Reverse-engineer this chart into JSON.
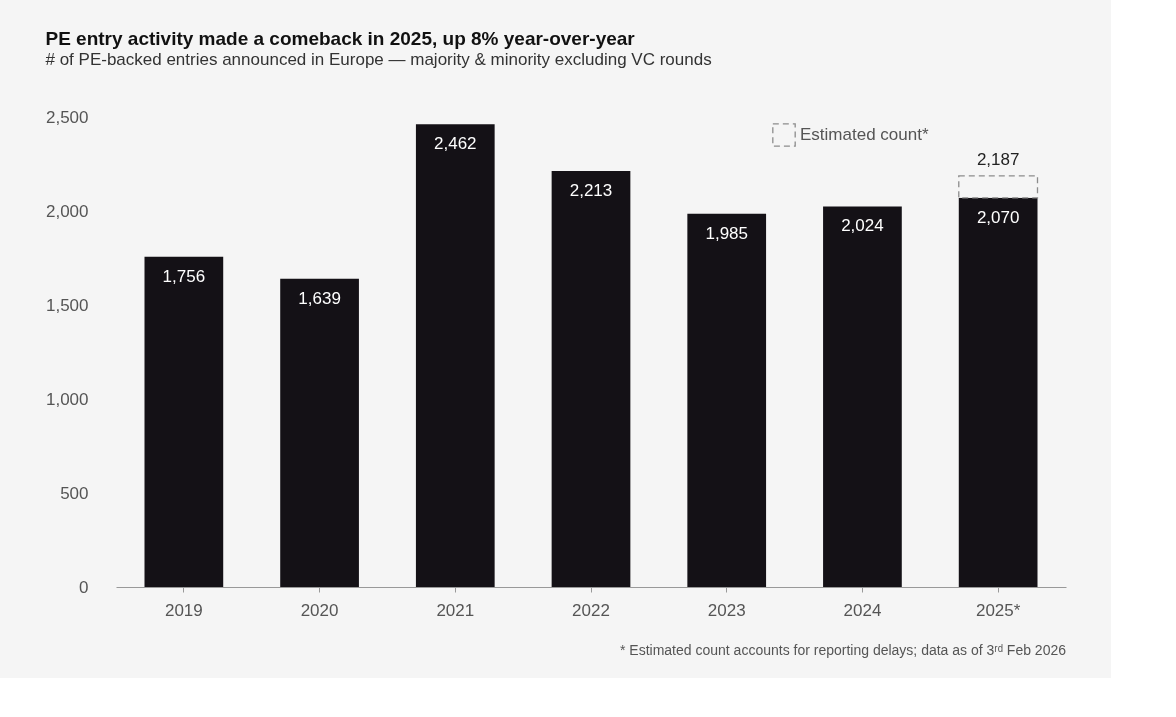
{
  "chart_data": {
    "type": "bar",
    "title": "PE entry activity made a comeback in 2025, up 8% year-over-year",
    "subtitle": "# of PE-backed entries announced in Europe — majority & minority excluding VC rounds",
    "categories": [
      "2019",
      "2020",
      "2021",
      "2022",
      "2023",
      "2024",
      "2025*"
    ],
    "series": [
      {
        "color": "#141116",
        "values": [
          1756,
          1639,
          2462,
          2213,
          1985,
          2024,
          2070
        ],
        "value_labels": [
          "1,756",
          "1,639",
          "2,462",
          "2,213",
          "1,985",
          "2,024",
          "2,070"
        ]
      },
      {
        "name": "Estimated count*",
        "color": "#8c8c8c",
        "line_style": "dashed",
        "values": [
          null,
          null,
          null,
          null,
          null,
          null,
          117
        ]
      }
    ],
    "stacked": true,
    "totals": [
      null,
      null,
      null,
      null,
      null,
      null,
      "2,187"
    ],
    "ylim": [
      0,
      2500
    ],
    "yticks": [
      0,
      500,
      {
        "value": 1000,
        "label": "1,000"
      },
      {
        "value": 1500,
        "label": "1,500"
      },
      {
        "value": 2000,
        "label": "2,000"
      },
      {
        "value": 2500,
        "label": "2,500"
      }
    ],
    "grid": false,
    "legend": "top right",
    "annotations": [
      "* Estimated count accounts for reporting delays; data as of 3ʳᵈ Feb 2026"
    ]
  }
}
